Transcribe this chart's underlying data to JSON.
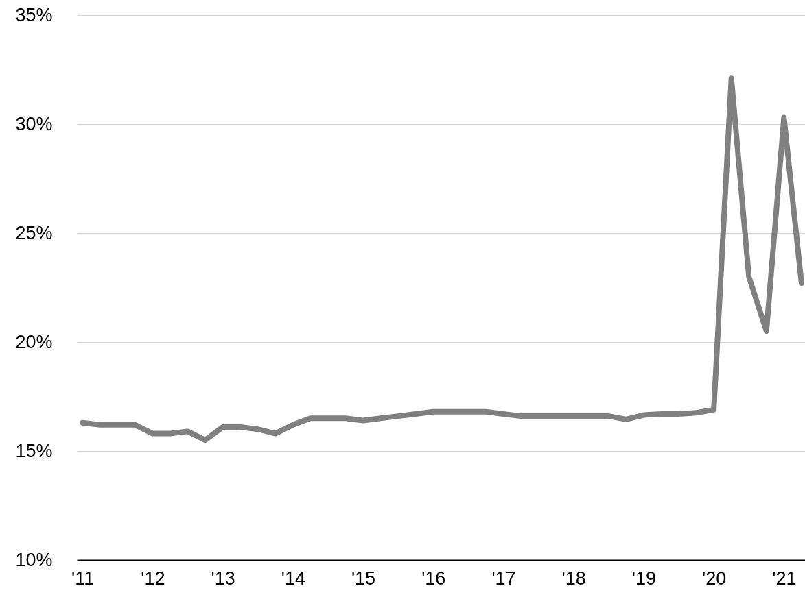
{
  "chart_data": {
    "type": "line",
    "x": [
      2011,
      2011.25,
      2011.5,
      2011.75,
      2012,
      2012.25,
      2012.5,
      2012.75,
      2013,
      2013.25,
      2013.5,
      2013.75,
      2014,
      2014.25,
      2014.5,
      2014.75,
      2015,
      2015.25,
      2015.5,
      2015.75,
      2016,
      2016.25,
      2016.5,
      2016.75,
      2017,
      2017.25,
      2017.5,
      2017.75,
      2018,
      2018.25,
      2018.5,
      2018.75,
      2019,
      2019.25,
      2019.5,
      2019.75,
      2020,
      2020.25,
      2020.5,
      2020.75,
      2021,
      2021.25
    ],
    "series": [
      {
        "color": "#808080",
        "values": [
          16.3,
          16.2,
          16.2,
          16.2,
          15.8,
          15.8,
          15.9,
          15.5,
          16.1,
          16.1,
          16.0,
          15.8,
          16.2,
          16.5,
          16.5,
          16.5,
          16.4,
          16.5,
          16.6,
          16.7,
          16.8,
          16.8,
          16.8,
          16.8,
          16.7,
          16.6,
          16.6,
          16.6,
          16.6,
          16.6,
          16.6,
          16.45,
          16.65,
          16.7,
          16.7,
          16.75,
          16.9,
          32.1,
          23.0,
          20.5,
          30.3,
          22.7
        ]
      }
    ],
    "xlim": [
      2010.92,
      2021.3
    ],
    "xticks": [
      {
        "value": 2011,
        "label": "'11"
      },
      {
        "value": 2012,
        "label": "'12"
      },
      {
        "value": 2013,
        "label": "'13"
      },
      {
        "value": 2014,
        "label": "'14"
      },
      {
        "value": 2015,
        "label": "'15"
      },
      {
        "value": 2016,
        "label": "'16"
      },
      {
        "value": 2017,
        "label": "'17"
      },
      {
        "value": 2018,
        "label": "'18"
      },
      {
        "value": 2019,
        "label": "'19"
      },
      {
        "value": 2020,
        "label": "'20"
      },
      {
        "value": 2021,
        "label": "'21"
      }
    ],
    "ylim": [
      10,
      35
    ],
    "yticks": [
      {
        "value": 10,
        "label": "10%"
      },
      {
        "value": 15,
        "label": "15%"
      },
      {
        "value": 20,
        "label": "20%"
      },
      {
        "value": 25,
        "label": "25%"
      },
      {
        "value": 30,
        "label": "30%"
      },
      {
        "value": 35,
        "label": "35%"
      }
    ],
    "grid": "y",
    "line_style": "solid",
    "marker": "none"
  }
}
